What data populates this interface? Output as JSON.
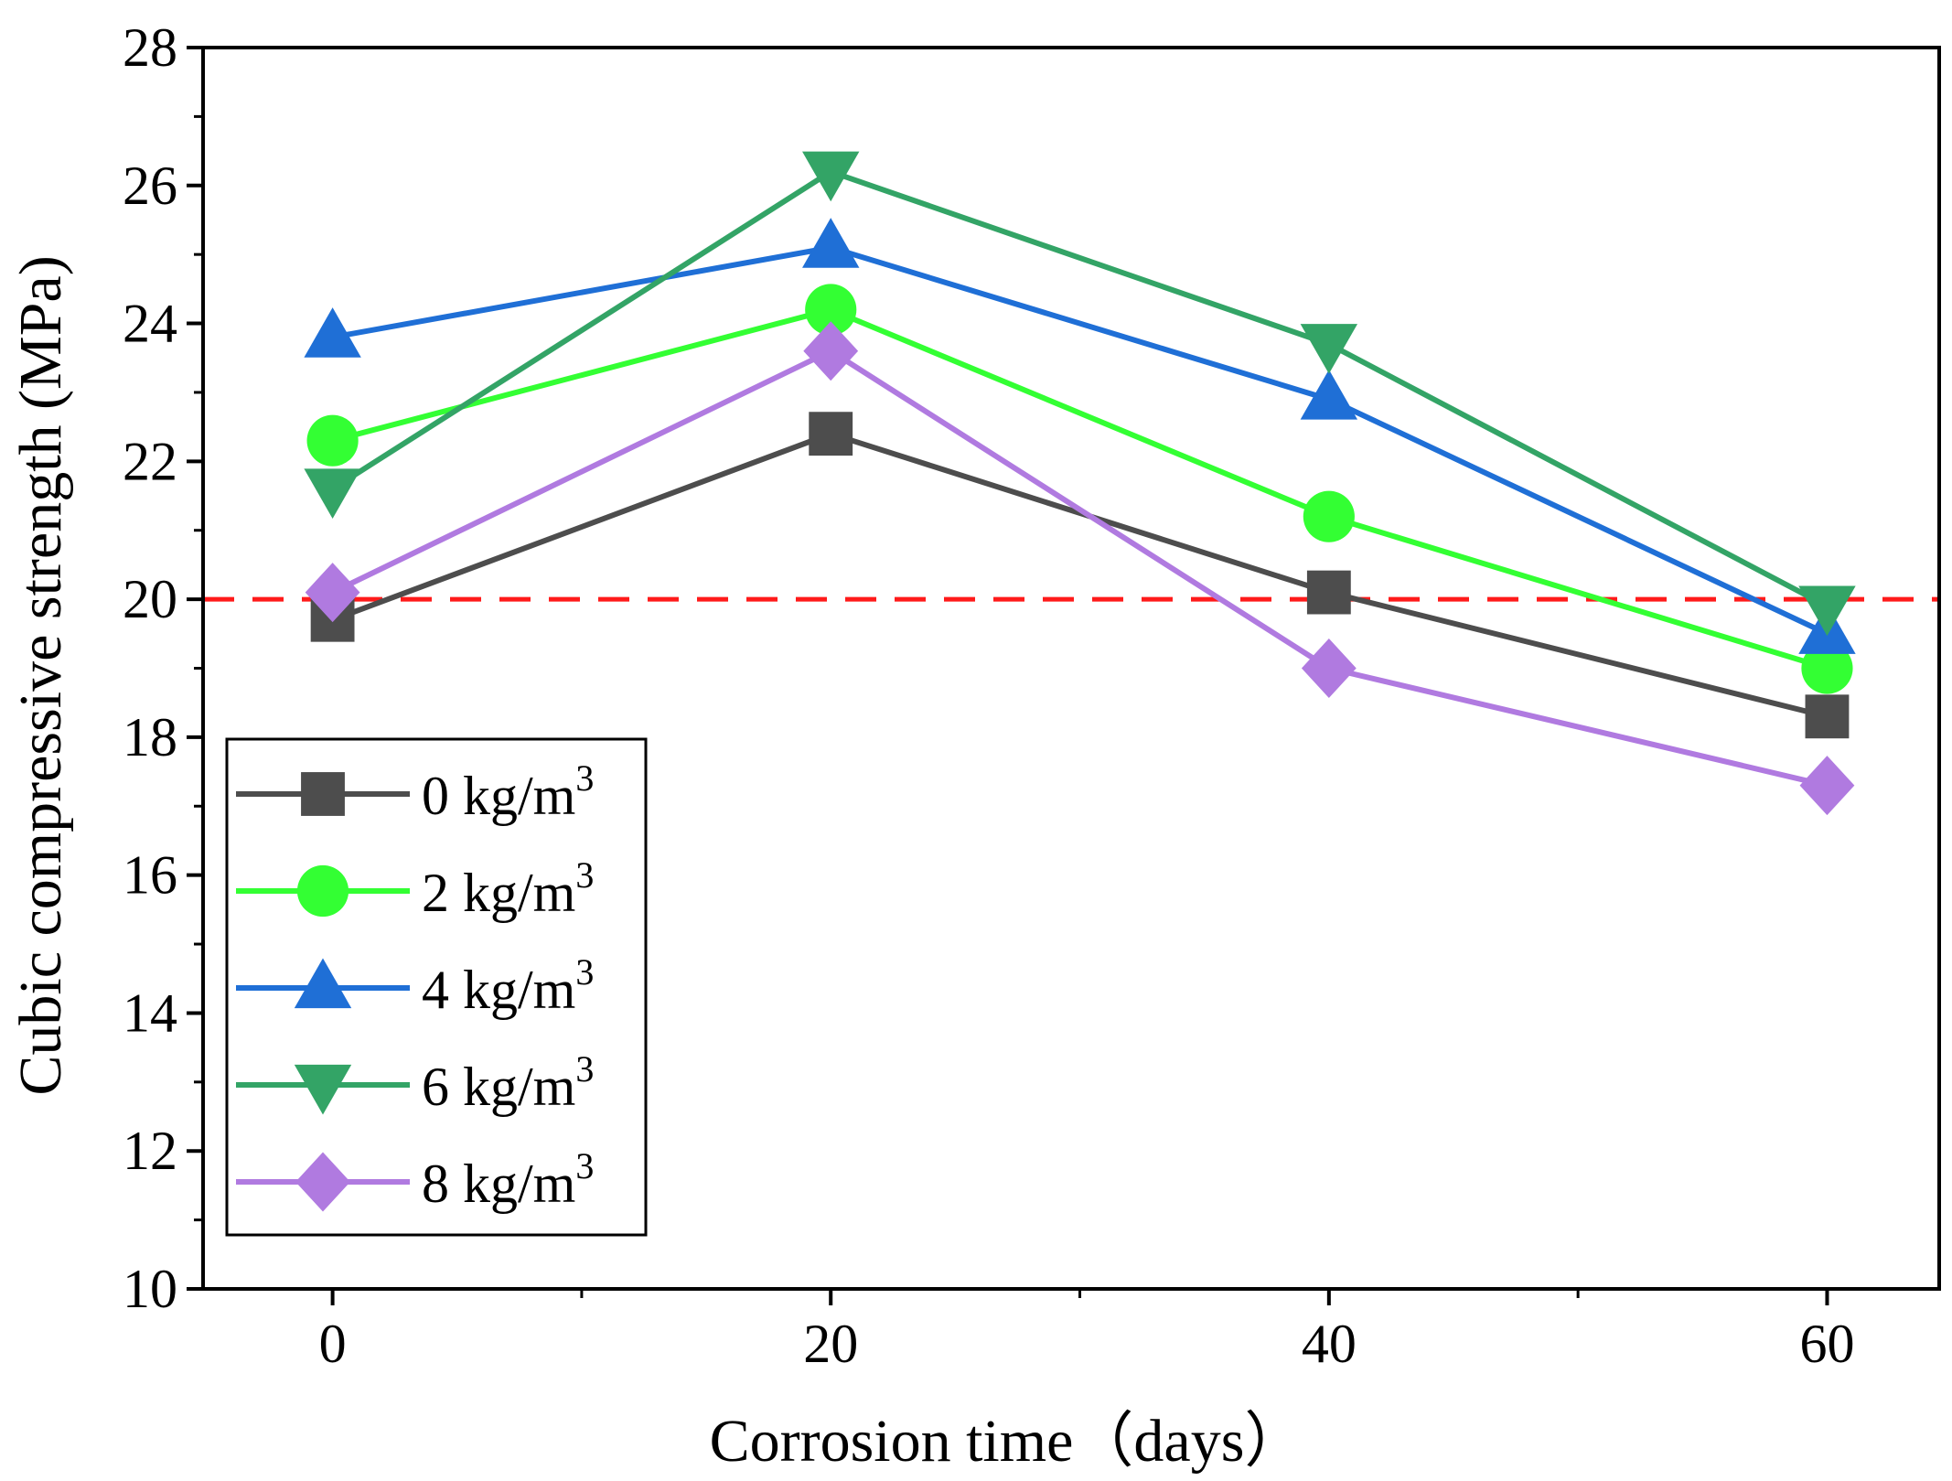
{
  "chart_data": {
    "type": "line",
    "title": "",
    "xlabel": "Corrosion time（days）",
    "ylabel": "Cubic compressive strength (MPa)",
    "x": [
      0,
      20,
      40,
      60
    ],
    "xlim": [
      -5.2,
      64.5
    ],
    "ylim": [
      10,
      28
    ],
    "xticks": [
      0,
      20,
      40,
      60
    ],
    "xticks_labels": [
      "0",
      "20",
      "40",
      "60"
    ],
    "yticks": [
      10,
      12,
      14,
      16,
      18,
      20,
      22,
      24,
      26,
      28
    ],
    "yticks_labels": [
      "10",
      "12",
      "14",
      "16",
      "18",
      "20",
      "22",
      "24",
      "26",
      "28"
    ],
    "grid": false,
    "legend_position": "bottom-left",
    "reference_line": {
      "y": 20,
      "color": "#ff1a1a",
      "style": "dashed"
    },
    "series": [
      {
        "name": "0 kg/m",
        "superscript": "3",
        "marker": "square",
        "color": "#4d4d4d",
        "values": [
          19.7,
          22.4,
          20.1,
          18.3
        ]
      },
      {
        "name": "2 kg/m",
        "superscript": "3",
        "marker": "circle",
        "color": "#33ff33",
        "values": [
          22.3,
          24.2,
          21.2,
          19.0
        ]
      },
      {
        "name": "4 kg/m",
        "superscript": "3",
        "marker": "triangle-up",
        "color": "#1f6fd6",
        "values": [
          23.8,
          25.1,
          22.9,
          19.5
        ]
      },
      {
        "name": "6 kg/m",
        "superscript": "3",
        "marker": "triangle-down",
        "color": "#33a466",
        "values": [
          21.6,
          26.2,
          23.7,
          19.9
        ]
      },
      {
        "name": "8 kg/m",
        "superscript": "3",
        "marker": "diamond",
        "color": "#b07ae0",
        "values": [
          20.1,
          23.6,
          19.0,
          17.3
        ]
      }
    ]
  }
}
